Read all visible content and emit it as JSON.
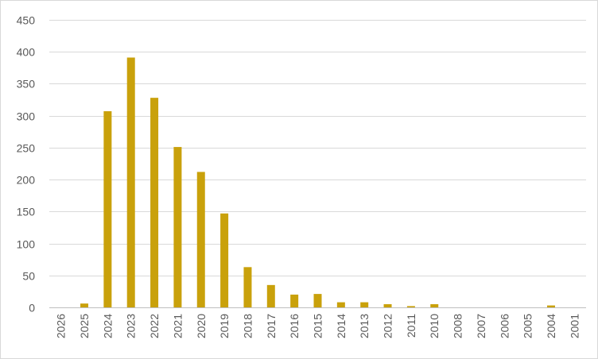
{
  "chart_data": {
    "type": "bar",
    "title": "",
    "xlabel": "",
    "ylabel": "",
    "categories": [
      "2026",
      "2025",
      "2024",
      "2023",
      "2022",
      "2021",
      "2020",
      "2019",
      "2018",
      "2017",
      "2016",
      "2015",
      "2014",
      "2013",
      "2012",
      "2011",
      "2010",
      "2008",
      "2007",
      "2006",
      "2005",
      "2004",
      "2001"
    ],
    "values": [
      0,
      6,
      307,
      391,
      328,
      251,
      212,
      147,
      63,
      35,
      20,
      21,
      8,
      8,
      5,
      2,
      5,
      0,
      0,
      0,
      0,
      3,
      0
    ],
    "ylim": [
      0,
      450
    ],
    "yticks": [
      0,
      50,
      100,
      150,
      200,
      250,
      300,
      350,
      400,
      450
    ],
    "grid": true,
    "legend": "none",
    "bar_color": "#c9a10b"
  }
}
